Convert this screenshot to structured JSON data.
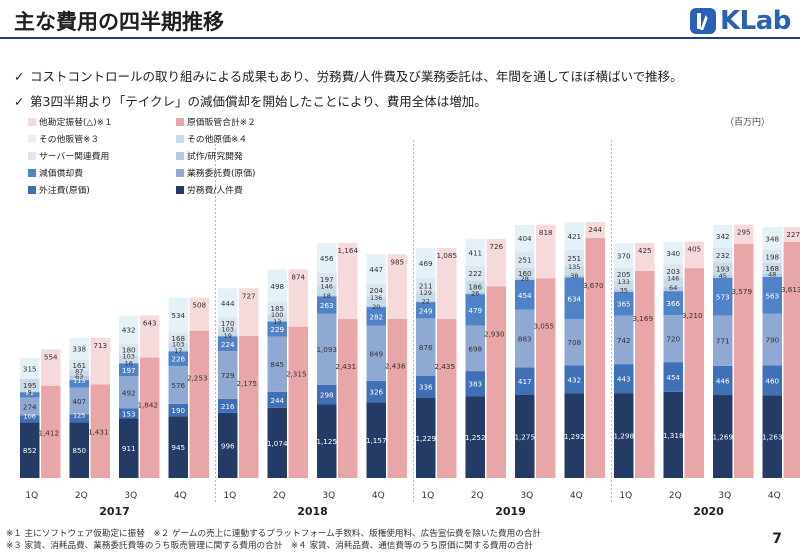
{
  "header": {
    "title": "主な費用の四半期推移",
    "logo_text": "KLab",
    "accent": "#1f3f8a"
  },
  "bullets": [
    "コストコントロールの取り組みによる成果もあり、労務費/人件費及び業務委託は、年間を通してほぼ横ばいで推移。",
    "第3四半期より「テイクレ」の減価償却を開始したことにより、費用全体は増加。"
  ],
  "bullet_icon": "check-icon",
  "unit": "（百万円）",
  "footnotes": [
    "※１ 主にソフトウェア仮勘定に振替　※２ ゲームの売上に連動するプラットフォーム手数料、版権使用料、広告宣伝費を除いた費用の合計",
    "※３ 家賃、消耗品費、業務委託費等のうち販売管理に関する費用の合計　※４ 家賃、消耗品費、通信費等のうち原価に関する費用の合計"
  ],
  "page_number": "7",
  "chart_data": {
    "type": "bar",
    "stacked": true,
    "categories": [
      "1Q",
      "2Q",
      "3Q",
      "4Q",
      "1Q",
      "2Q",
      "3Q",
      "4Q",
      "1Q",
      "2Q",
      "3Q",
      "4Q",
      "1Q",
      "2Q",
      "3Q",
      "4Q"
    ],
    "years": [
      {
        "label": "2017",
        "start": 0,
        "end": 3
      },
      {
        "label": "2018",
        "start": 4,
        "end": 7
      },
      {
        "label": "2019",
        "start": 8,
        "end": 11
      },
      {
        "label": "2020",
        "start": 12,
        "end": 15
      }
    ],
    "ylim": [
      0,
      5200
    ],
    "grid": false,
    "legend_position": "top-left",
    "stack_a": {
      "series": [
        {
          "name": "労務費/人件費",
          "color": "#243b66",
          "values": [
            852,
            850,
            911,
            945,
            996,
            1074,
            1125,
            1157,
            1229,
            1252,
            1275,
            1292,
            1298,
            1318,
            1269,
            1263
          ]
        },
        {
          "name": "外注費(原価)",
          "color": "#3f6fb5",
          "values": [
            106,
            125,
            153,
            190,
            216,
            244,
            298,
            326,
            336,
            383,
            417,
            432,
            443,
            454,
            446,
            460
          ]
        },
        {
          "name": "業務委託費(原価)",
          "color": "#8fa9d3",
          "values": [
            274,
            407,
            492,
            576,
            729,
            845,
            1093,
            849,
            876,
            698,
            883,
            708,
            742,
            720,
            771,
            790
          ]
        },
        {
          "name": "減価償却費",
          "color": "#4f82c6",
          "values": [
            81,
            115,
            197,
            226,
            224,
            229,
            263,
            282,
            249,
            479,
            454,
            634,
            365,
            366,
            573,
            563
          ]
        },
        {
          "name": "試作/研究開発",
          "color": "#b4c7e3",
          "values": [
            9,
            63,
            16,
            17,
            19,
            13,
            18,
            20,
            22,
            26,
            28,
            38,
            35,
            64,
            45,
            48
          ]
        },
        {
          "name": "その他原価※４",
          "color": "#c9dbe9",
          "values": [
            195,
            87,
            103,
            103,
            103,
            100,
            146,
            136,
            129,
            186,
            160,
            135,
            133,
            146,
            193,
            168
          ]
        },
        {
          "name": "サーバー関連費用",
          "color": "#dce6f1",
          "values": [
            0,
            161,
            180,
            168,
            170,
            185,
            197,
            204,
            211,
            222,
            251,
            251,
            205,
            203,
            232,
            198
          ]
        },
        {
          "name": "その他販管※３",
          "color": "#e4f1f7",
          "values": [
            315,
            338,
            432,
            534,
            444,
            498,
            456,
            447,
            469,
            411,
            404,
            421,
            370,
            340,
            342,
            348
          ]
        }
      ],
      "data_label_series": [
        0,
        1,
        2,
        3,
        4,
        5,
        6,
        7
      ],
      "small_label_indices": [
        4
      ]
    },
    "stack_b": {
      "series": [
        {
          "name": "原価販管合計※２",
          "color": "#e9a6a8",
          "values": [
            1412,
            1431,
            1842,
            2253,
            2175,
            2315,
            2431,
            2436,
            2435,
            2930,
            3055,
            3670,
            3169,
            3210,
            3579,
            3613
          ]
        },
        {
          "name": "他勘定振替(△)※１",
          "color": "#f6d9da",
          "values": [
            554,
            713,
            643,
            508,
            727,
            874,
            1164,
            985,
            1085,
            726,
            818,
            244,
            425,
            405,
            295,
            227
          ]
        }
      ]
    },
    "legend": [
      {
        "name": "他勘定振替(△)※１",
        "color": "#f6d9da"
      },
      {
        "name": "原価販管合計※２",
        "color": "#e9a6a8"
      },
      {
        "name": "その他販管※３",
        "color": "#e4f1f7"
      },
      {
        "name": "その他原価※４",
        "color": "#c9dbe9"
      },
      {
        "name": "サーバー関連費用",
        "color": "#dce6f1"
      },
      {
        "name": "試作/研究開発",
        "color": "#b4c7e3"
      },
      {
        "name": "減価償却費",
        "color": "#4f82c6"
      },
      {
        "name": "業務委託費(原価)",
        "color": "#8fa9d3"
      },
      {
        "name": "外注費(原価)",
        "color": "#3f6fb5"
      },
      {
        "name": "労務費/人件費",
        "color": "#243b66"
      }
    ]
  }
}
